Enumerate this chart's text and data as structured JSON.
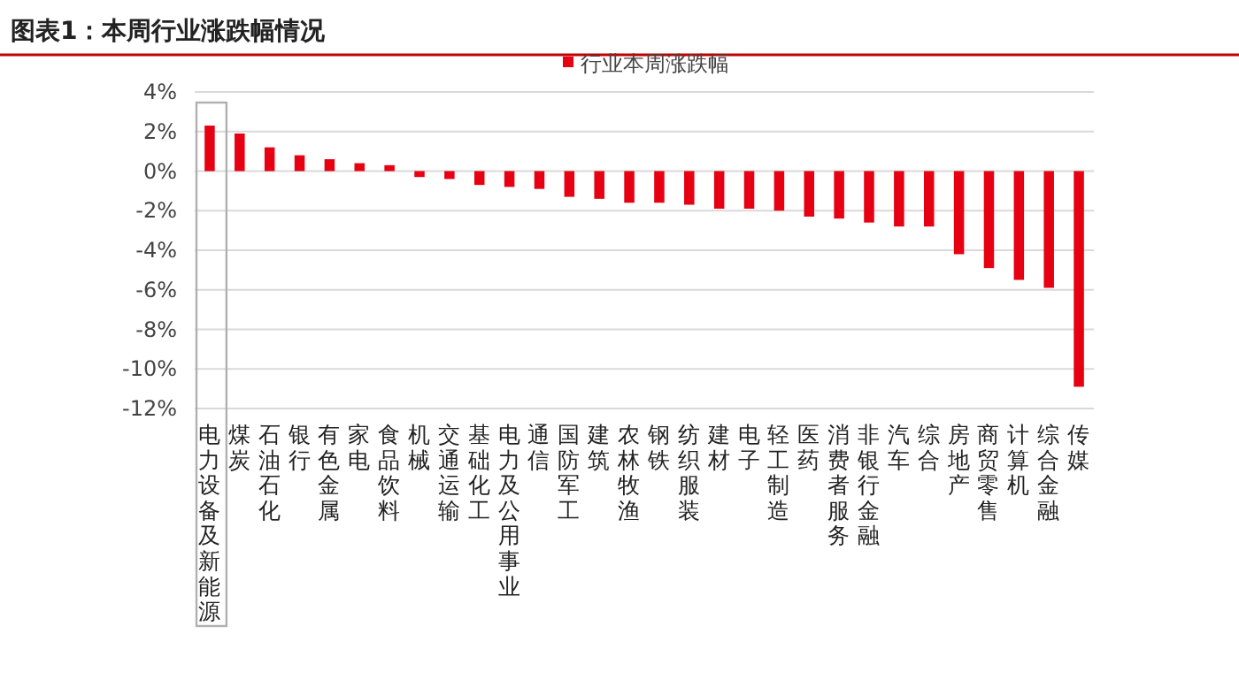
{
  "chart_data": {
    "type": "bar",
    "title": "图表1：本周行业涨跌幅情况",
    "categories": [
      "电力设备及新能源",
      "煤炭",
      "石油石化",
      "银行",
      "有色金属",
      "家电",
      "食品饮料",
      "机械",
      "交通运输",
      "基础化工",
      "电力及公用事业",
      "通信",
      "国防军工",
      "建筑",
      "农林牧渔",
      "钢铁",
      "纺织服装",
      "建材",
      "电子",
      "轻工制造",
      "医药",
      "消费者服务",
      "非银行金融",
      "汽车",
      "综合",
      "房地产",
      "商贸零售",
      "计算机",
      "综合金融",
      "传媒"
    ],
    "series": [
      {
        "name": "行业本周涨跌幅",
        "color": "#e60012",
        "values": [
          2.3,
          1.9,
          1.2,
          0.8,
          0.6,
          0.4,
          0.3,
          -0.3,
          -0.4,
          -0.7,
          -0.8,
          -0.9,
          -1.3,
          -1.4,
          -1.6,
          -1.6,
          -1.7,
          -1.9,
          -1.9,
          -2.0,
          -2.3,
          -2.4,
          -2.6,
          -2.8,
          -2.8,
          -4.2,
          -4.9,
          -5.5,
          -5.9,
          -10.9
        ]
      }
    ],
    "ylim": [
      -12,
      4
    ],
    "yticks": [
      {
        "value": 4,
        "label": "4%"
      },
      {
        "value": 2,
        "label": "2%"
      },
      {
        "value": 0,
        "label": "0%"
      },
      {
        "value": -2,
        "label": "-2%"
      },
      {
        "value": -4,
        "label": "-4%"
      },
      {
        "value": -6,
        "label": "-6%"
      },
      {
        "value": -8,
        "label": "-8%"
      },
      {
        "value": -10,
        "label": "-10%"
      },
      {
        "value": -12,
        "label": "-12%"
      }
    ],
    "grid": "y",
    "legend": "top"
  }
}
